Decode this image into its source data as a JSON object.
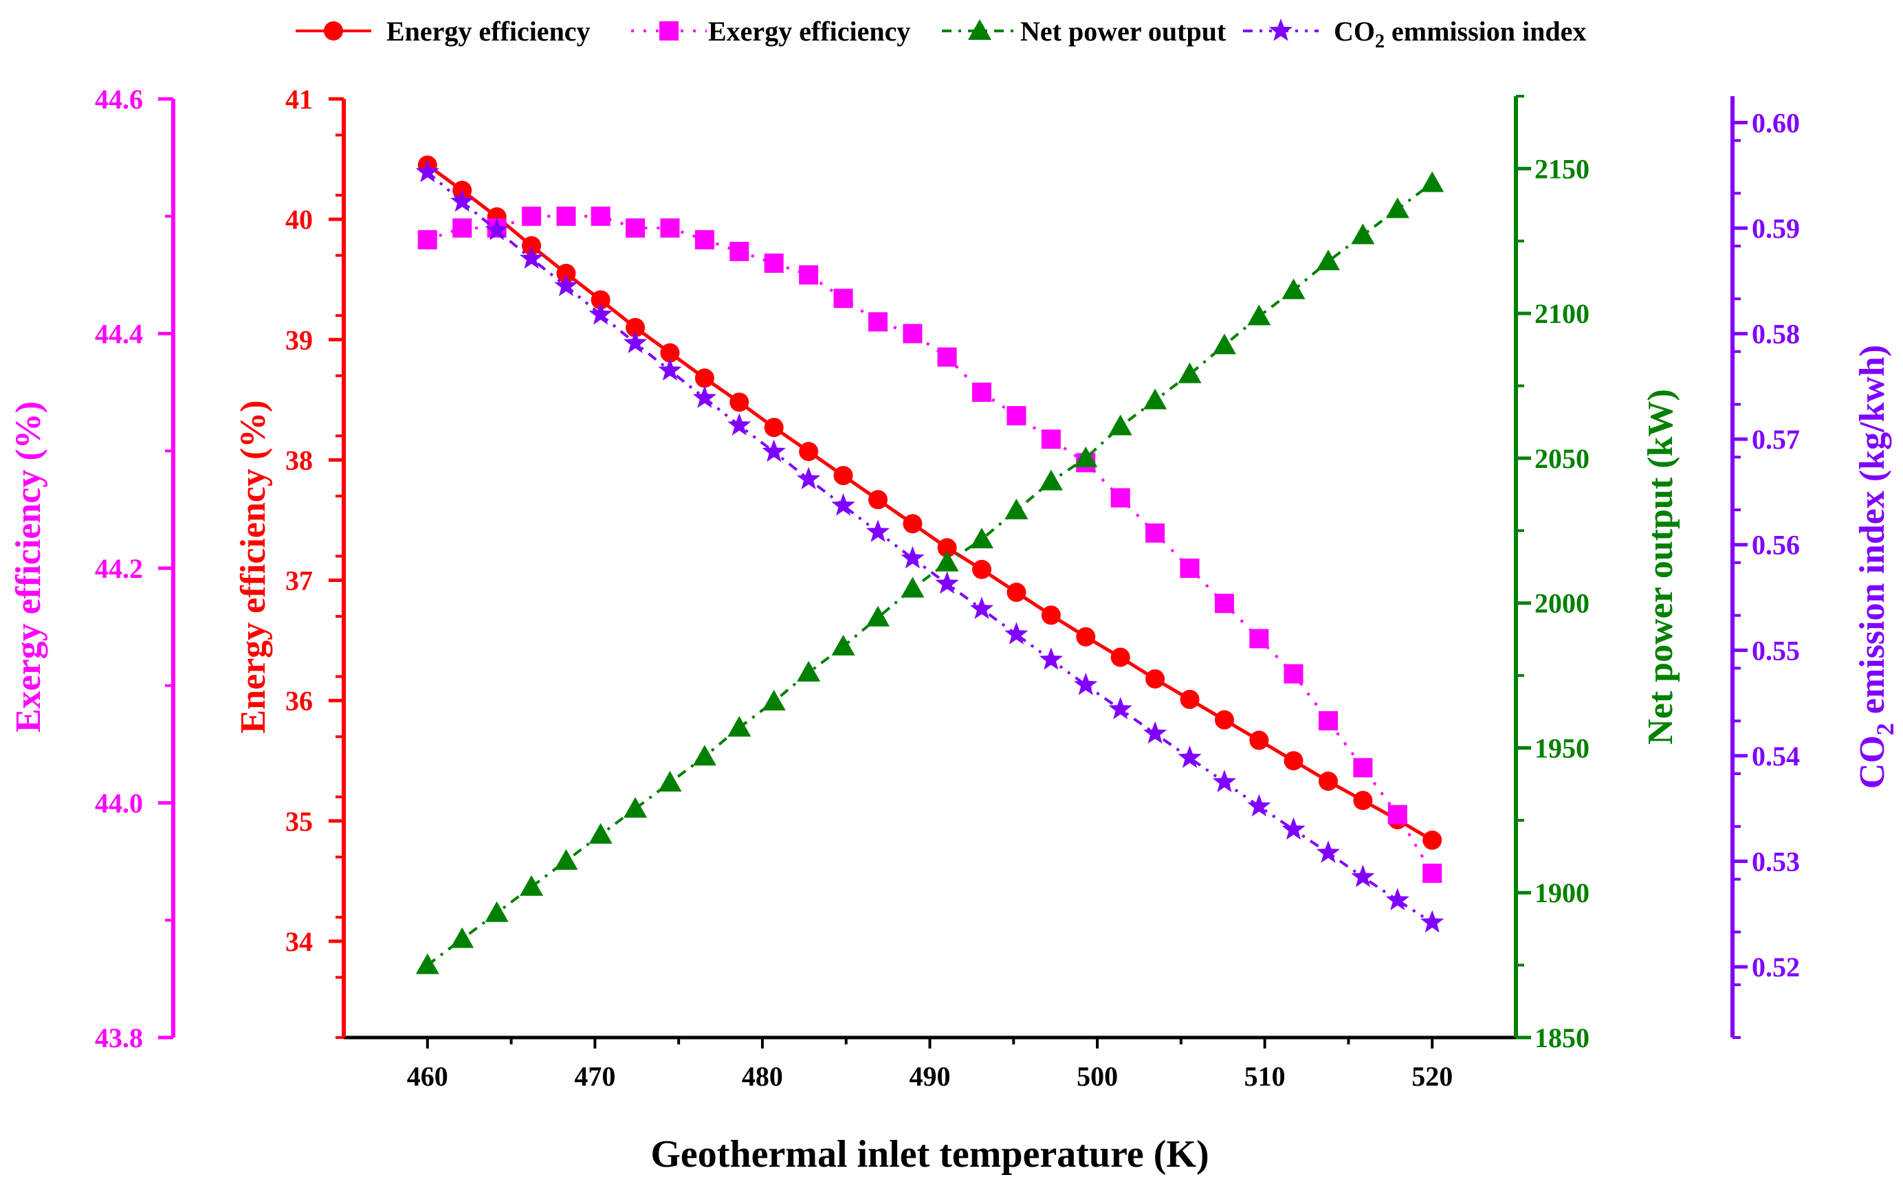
{
  "colors": {
    "energy": "#ff0000",
    "exergy": "#ff00ff",
    "power": "#008000",
    "co2": "#8000ff",
    "text": "#000000"
  },
  "xaxis": {
    "label": "Geothermal inlet temperature  (K)",
    "min": 455,
    "max": 525,
    "ticks": [
      "460",
      "470",
      "480",
      "490",
      "500",
      "510",
      "520"
    ]
  },
  "axes": {
    "exergy": {
      "label": "Exergy efficiency (%)",
      "min": 43.8,
      "max": 44.6,
      "ticks": [
        "43.8",
        "44.0",
        "44.2",
        "44.4",
        "44.6"
      ]
    },
    "energy": {
      "label": "Energy efficiency (%)",
      "min": 33.2,
      "max": 41,
      "ticks": [
        "34",
        "35",
        "36",
        "37",
        "38",
        "39",
        "40",
        "41"
      ]
    },
    "power": {
      "label": "Net power output (kW)",
      "min": 1850,
      "max": 2175,
      "ticks": [
        "1850",
        "1900",
        "1950",
        "2000",
        "2050",
        "2100",
        "2150"
      ]
    },
    "co2": {
      "label_pre": "CO",
      "label_sub": "2",
      "label_post": " emission index (kg/kwh)",
      "min": 0.5133,
      "max": 0.6025,
      "ticks": [
        "0.52",
        "0.53",
        "0.54",
        "0.55",
        "0.56",
        "0.57",
        "0.58",
        "0.59",
        "0.60"
      ]
    }
  },
  "legend": {
    "energy": "Energy efficiency",
    "exergy": "Exergy efficiency",
    "power": "Net power output",
    "co2_pre": "CO",
    "co2_sub": "2",
    "co2_post": " emmission index"
  },
  "chart_data": {
    "type": "line",
    "title": "",
    "xlabel": "Geothermal inlet temperature  (K)",
    "x": [
      460,
      462.07,
      464.14,
      466.21,
      468.28,
      470.34,
      472.41,
      474.48,
      476.55,
      478.62,
      480.69,
      482.76,
      484.83,
      486.9,
      488.97,
      491.03,
      493.1,
      495.17,
      497.24,
      499.31,
      501.38,
      503.45,
      505.52,
      507.59,
      509.66,
      511.72,
      513.79,
      515.86,
      517.93,
      520
    ],
    "series": [
      {
        "name": "Energy efficiency",
        "axis": "energy",
        "marker": "circle",
        "values": [
          40.45,
          40.24,
          40.02,
          39.78,
          39.55,
          39.33,
          39.1,
          38.89,
          38.68,
          38.48,
          38.27,
          38.07,
          37.87,
          37.67,
          37.47,
          37.27,
          37.09,
          36.9,
          36.71,
          36.53,
          36.36,
          36.18,
          36.01,
          35.84,
          35.67,
          35.5,
          35.33,
          35.17,
          35.01,
          34.84
        ]
      },
      {
        "name": "Exergy efficiency",
        "axis": "exergy",
        "marker": "square",
        "values": [
          44.48,
          44.49,
          44.49,
          44.5,
          44.5,
          44.5,
          44.49,
          44.49,
          44.48,
          44.47,
          44.46,
          44.45,
          44.43,
          44.41,
          44.4,
          44.38,
          44.35,
          44.33,
          44.31,
          44.29,
          44.26,
          44.23,
          44.2,
          44.17,
          44.14,
          44.11,
          44.07,
          44.03,
          43.99,
          43.94
        ]
      },
      {
        "name": "Net power output",
        "axis": "power",
        "marker": "triangle",
        "values": [
          1875,
          1884,
          1893,
          1902,
          1911,
          1920,
          1929,
          1938,
          1947,
          1957,
          1966,
          1976,
          1985,
          1995,
          2005,
          2014,
          2022,
          2032,
          2042,
          2050,
          2061,
          2070,
          2079,
          2089,
          2099,
          2108,
          2118,
          2127,
          2136,
          2145
        ]
      },
      {
        "name": "CO2 emmission index",
        "axis": "co2",
        "marker": "star",
        "values": [
          0.5953,
          0.5925,
          0.5898,
          0.5871,
          0.5845,
          0.5818,
          0.5791,
          0.5765,
          0.5739,
          0.5713,
          0.5688,
          0.5662,
          0.5637,
          0.5612,
          0.5587,
          0.5563,
          0.5539,
          0.5515,
          0.5491,
          0.5467,
          0.5444,
          0.5421,
          0.5398,
          0.5375,
          0.5352,
          0.533,
          0.5308,
          0.5285,
          0.5263,
          0.5242
        ]
      }
    ]
  }
}
